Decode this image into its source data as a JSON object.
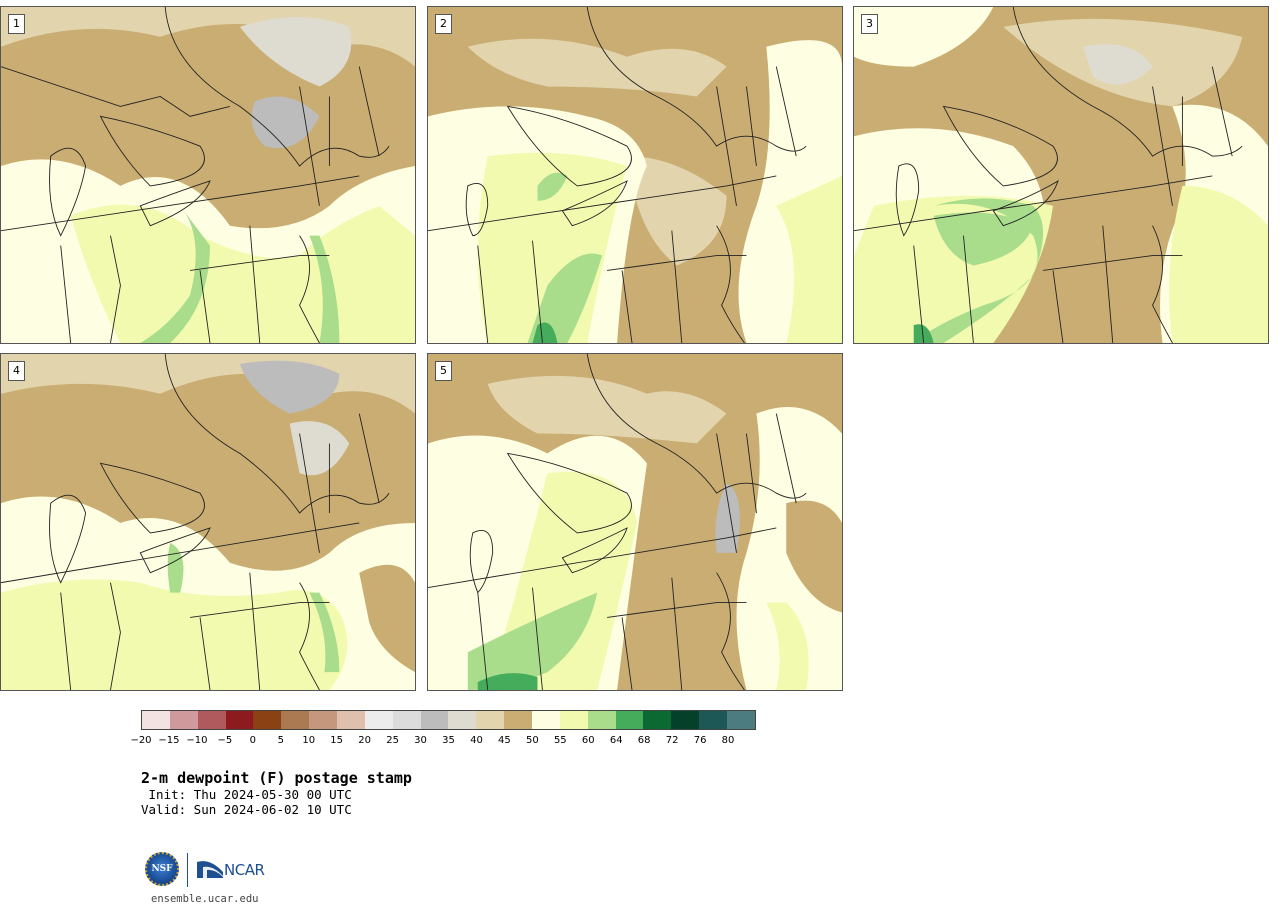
{
  "panels": [
    {
      "label": "1"
    },
    {
      "label": "2"
    },
    {
      "label": "3"
    },
    {
      "label": "4"
    },
    {
      "label": "5"
    }
  ],
  "colorbar": {
    "colors": [
      "#f2e2e2",
      "#d09a9c",
      "#b05a5e",
      "#8c1a1e",
      "#8a4214",
      "#ab7952",
      "#c5987e",
      "#dfc0ac",
      "#ececec",
      "#dcdcdc",
      "#bcbcbc",
      "#dedcd0",
      "#e2d4ac",
      "#c9ad72",
      "#fefee2",
      "#f2fab0",
      "#a9dd8c",
      "#45ac5c",
      "#0a6a32",
      "#05412a",
      "#1d5856",
      "#4c7b80"
    ],
    "tick_labels": [
      "−20",
      "−15",
      "−10",
      "−5",
      "0",
      "5",
      "10",
      "15",
      "20",
      "25",
      "30",
      "35",
      "40",
      "45",
      "50",
      "55",
      "60",
      "64",
      "68",
      "72",
      "76",
      "80"
    ]
  },
  "title": "2-m dewpoint (F) postage stamp",
  "init": " Init: Thu 2024-05-30 00 UTC",
  "valid": "Valid: Sun 2024-06-02 10 UTC",
  "logo": {
    "nsf_text": "NSF",
    "ncar_text": "NCAR"
  },
  "url": "ensemble.ucar.edu"
}
